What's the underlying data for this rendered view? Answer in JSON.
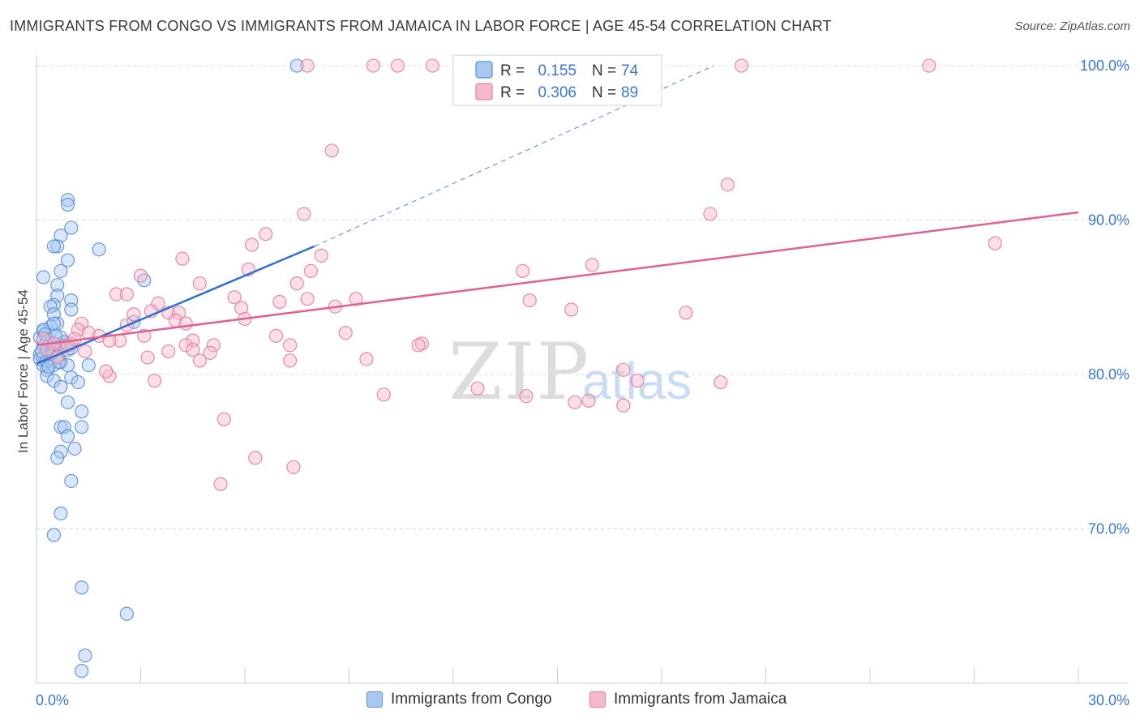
{
  "title": "IMMIGRANTS FROM CONGO VS IMMIGRANTS FROM JAMAICA IN LABOR FORCE | AGE 45-54 CORRELATION CHART",
  "source": "Source: ZipAtlas.com",
  "colors": {
    "congo_fill": "#a8c8f0",
    "congo_stroke": "#5b8fd6",
    "congo_line": "#2e6fd0",
    "jamaica_fill": "#f6b8cc",
    "jamaica_stroke": "#e07fa0",
    "jamaica_line": "#e06090",
    "axis_label": "#3a78d4",
    "grid": "#d8d8d8"
  },
  "chart_data": {
    "type": "scatter",
    "title": "IMMIGRANTS FROM CONGO VS IMMIGRANTS FROM JAMAICA IN LABOR FORCE | AGE 45-54 CORRELATION CHART",
    "xlabel": "",
    "ylabel": "In Labor Force | Age 45-54",
    "xlim": [
      0,
      30
    ],
    "ylim": [
      60,
      101
    ],
    "x_tick_labels": [
      "0.0%",
      "30.0%"
    ],
    "y_ticks": [
      70,
      80,
      90,
      100
    ],
    "y_tick_labels": [
      "70.0%",
      "80.0%",
      "90.0%",
      "100.0%"
    ],
    "watermark": "ZIPatlas",
    "legend": [
      {
        "series": "Immigrants from Congo",
        "r_label": "R =",
        "r": "0.155",
        "n_label": "N =",
        "n": "74"
      },
      {
        "series": "Immigrants from Jamaica",
        "r_label": "R =",
        "r": "0.306",
        "n_label": "N =",
        "n": "89"
      }
    ],
    "series": [
      {
        "name": "Immigrants from Congo",
        "trend": {
          "x0": 0.0,
          "y0": 80.7,
          "x1": 8.0,
          "y1": 88.3,
          "dash_x1": 19.5,
          "dash_y1": 100.0
        },
        "points": [
          [
            7.5,
            100
          ],
          [
            0.9,
            91.3
          ],
          [
            0.9,
            91
          ],
          [
            1.0,
            89.5
          ],
          [
            0.7,
            89
          ],
          [
            0.6,
            88.3
          ],
          [
            0.5,
            88.3
          ],
          [
            1.8,
            88.1
          ],
          [
            0.9,
            87.4
          ],
          [
            0.7,
            86.7
          ],
          [
            0.2,
            86.3
          ],
          [
            3.1,
            86.1
          ],
          [
            0.6,
            85.8
          ],
          [
            0.6,
            85.1
          ],
          [
            1.0,
            84.8
          ],
          [
            0.5,
            84.5
          ],
          [
            0.4,
            84.4
          ],
          [
            1.0,
            84.2
          ],
          [
            0.5,
            83.9
          ],
          [
            0.6,
            83.3
          ],
          [
            0.4,
            83.1
          ],
          [
            2.8,
            83.4
          ],
          [
            0.2,
            82.8
          ],
          [
            0.1,
            82.4
          ],
          [
            0.3,
            82.3
          ],
          [
            0.7,
            82.4
          ],
          [
            0.8,
            81.9
          ],
          [
            0.2,
            81.8
          ],
          [
            0.5,
            81.8
          ],
          [
            0.9,
            81.6
          ],
          [
            0.3,
            81.6
          ],
          [
            0.1,
            81.3
          ],
          [
            0.2,
            81.1
          ],
          [
            0.7,
            80.8
          ],
          [
            0.2,
            80.6
          ],
          [
            0.5,
            80.6
          ],
          [
            0.9,
            80.6
          ],
          [
            0.3,
            80.3
          ],
          [
            0.3,
            79.9
          ],
          [
            0.5,
            79.6
          ],
          [
            1.0,
            79.8
          ],
          [
            1.2,
            79.5
          ],
          [
            0.7,
            79.2
          ],
          [
            0.9,
            78.2
          ],
          [
            1.3,
            77.6
          ],
          [
            0.7,
            76.6
          ],
          [
            0.8,
            76.6
          ],
          [
            1.3,
            76.6
          ],
          [
            0.9,
            76.0
          ],
          [
            0.7,
            75.0
          ],
          [
            1.1,
            75.2
          ],
          [
            0.6,
            74.6
          ],
          [
            1.0,
            73.1
          ],
          [
            0.7,
            71.0
          ],
          [
            0.5,
            69.6
          ],
          [
            1.3,
            66.2
          ],
          [
            2.6,
            64.5
          ],
          [
            1.4,
            61.8
          ],
          [
            1.3,
            60.8
          ],
          [
            0.1,
            81.0
          ],
          [
            0.4,
            82.0
          ],
          [
            0.6,
            81.2
          ],
          [
            0.2,
            82.9
          ],
          [
            0.8,
            82.1
          ],
          [
            0.3,
            80.9
          ],
          [
            1.0,
            81.7
          ],
          [
            0.5,
            83.3
          ],
          [
            0.15,
            81.5
          ],
          [
            0.35,
            80.5
          ],
          [
            0.65,
            80.8
          ],
          [
            0.25,
            82.6
          ],
          [
            0.45,
            81.4
          ],
          [
            1.5,
            80.6
          ],
          [
            0.55,
            82.5
          ]
        ]
      },
      {
        "name": "Immigrants from Jamaica",
        "trend": {
          "x0": 0.0,
          "y0": 81.9,
          "x1": 30.0,
          "y1": 90.5
        },
        "points": [
          [
            7.8,
            100
          ],
          [
            9.7,
            100
          ],
          [
            10.4,
            100
          ],
          [
            11.4,
            100
          ],
          [
            20.3,
            100
          ],
          [
            25.7,
            100
          ],
          [
            8.5,
            94.5
          ],
          [
            19.9,
            92.3
          ],
          [
            7.7,
            90.4
          ],
          [
            19.4,
            90.4
          ],
          [
            6.6,
            89.1
          ],
          [
            6.2,
            88.4
          ],
          [
            27.6,
            88.5
          ],
          [
            4.2,
            87.5
          ],
          [
            8.2,
            87.7
          ],
          [
            16.0,
            87.1
          ],
          [
            6.1,
            86.8
          ],
          [
            7.9,
            86.7
          ],
          [
            14.0,
            86.7
          ],
          [
            3.0,
            86.4
          ],
          [
            7.5,
            85.9
          ],
          [
            4.7,
            85.9
          ],
          [
            2.3,
            85.2
          ],
          [
            2.6,
            85.2
          ],
          [
            5.7,
            85.0
          ],
          [
            7.8,
            84.9
          ],
          [
            9.2,
            84.9
          ],
          [
            7.0,
            84.7
          ],
          [
            3.5,
            84.6
          ],
          [
            14.2,
            84.8
          ],
          [
            8.6,
            84.4
          ],
          [
            5.9,
            84.3
          ],
          [
            3.3,
            84.1
          ],
          [
            2.8,
            83.9
          ],
          [
            3.8,
            84.0
          ],
          [
            4.1,
            84.0
          ],
          [
            15.4,
            84.2
          ],
          [
            18.7,
            84.0
          ],
          [
            6.0,
            83.6
          ],
          [
            4.0,
            83.5
          ],
          [
            4.3,
            83.3
          ],
          [
            2.6,
            83.2
          ],
          [
            1.3,
            83.3
          ],
          [
            1.2,
            82.9
          ],
          [
            1.5,
            82.7
          ],
          [
            8.9,
            82.7
          ],
          [
            6.9,
            82.5
          ],
          [
            3.1,
            82.5
          ],
          [
            1.8,
            82.5
          ],
          [
            0.2,
            82.3
          ],
          [
            2.4,
            82.2
          ],
          [
            2.1,
            82.2
          ],
          [
            1.0,
            82.0
          ],
          [
            4.5,
            82.2
          ],
          [
            4.3,
            81.9
          ],
          [
            5.1,
            81.9
          ],
          [
            11.1,
            82.0
          ],
          [
            11.0,
            81.9
          ],
          [
            7.3,
            81.9
          ],
          [
            0.7,
            81.7
          ],
          [
            0.3,
            81.6
          ],
          [
            3.8,
            81.5
          ],
          [
            1.4,
            81.5
          ],
          [
            4.5,
            81.6
          ],
          [
            5.0,
            81.4
          ],
          [
            3.2,
            81.1
          ],
          [
            0.6,
            81.1
          ],
          [
            9.5,
            81.0
          ],
          [
            4.7,
            80.9
          ],
          [
            7.3,
            80.9
          ],
          [
            16.9,
            80.3
          ],
          [
            2.1,
            79.9
          ],
          [
            17.3,
            79.6
          ],
          [
            19.7,
            79.5
          ],
          [
            3.4,
            79.6
          ],
          [
            12.7,
            79.1
          ],
          [
            10.0,
            78.7
          ],
          [
            14.1,
            78.6
          ],
          [
            15.5,
            78.2
          ],
          [
            15.9,
            78.3
          ],
          [
            16.9,
            78.0
          ],
          [
            5.4,
            77.1
          ],
          [
            6.3,
            74.6
          ],
          [
            7.4,
            74.0
          ],
          [
            5.3,
            72.9
          ],
          [
            0.9,
            81.9
          ],
          [
            1.1,
            82.3
          ],
          [
            0.5,
            82.0
          ],
          [
            2.0,
            80.2
          ]
        ]
      }
    ]
  }
}
